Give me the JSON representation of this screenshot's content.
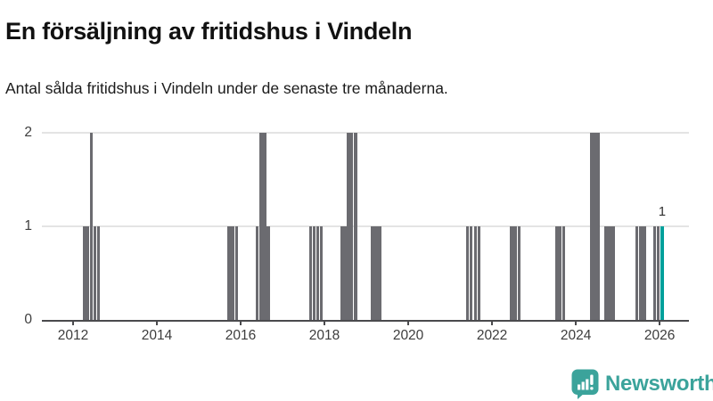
{
  "title": "En försäljning av fritidshus i Vindeln",
  "subtitle": "Antal sålda fritidshus i Vindeln under de senaste tre månaderna.",
  "branding": {
    "logo_text": "Newsworthy",
    "logo_icon": "newsworthy-bubble-barchart-icon",
    "logo_color": "#3BA39B"
  },
  "colors": {
    "bar": "#6B6B70",
    "highlight_bar": "#00A09B",
    "gridline": "#E4E4E4",
    "axis": "#4A4A4D",
    "tick_text": "#3D3D3D"
  },
  "chart_data": {
    "type": "bar",
    "title": "En försäljning av fritidshus i Vindeln",
    "subtitle": "Antal sålda fritidshus i Vindeln under de senaste tre månaderna.",
    "xlabel": "",
    "ylabel": "",
    "xlim": [
      2011.255,
      2026.7
    ],
    "ylim": [
      0,
      2
    ],
    "x_ticks": [
      2012,
      2014,
      2016,
      2018,
      2020,
      2022,
      2024,
      2026
    ],
    "y_ticks": [
      0,
      1,
      2
    ],
    "grid": "horizontal-light",
    "legend": "none",
    "annotation": {
      "text": "1",
      "year": 2026.06,
      "value": 1
    },
    "bars": [
      {
        "year": 2012.26,
        "value": 1
      },
      {
        "year": 2012.34,
        "value": 1
      },
      {
        "year": 2012.44,
        "value": 2
      },
      {
        "year": 2012.52,
        "value": 1
      },
      {
        "year": 2012.6,
        "value": 1
      },
      {
        "year": 2015.72,
        "value": 1
      },
      {
        "year": 2015.81,
        "value": 1
      },
      {
        "year": 2015.9,
        "value": 1
      },
      {
        "year": 2016.39,
        "value": 1
      },
      {
        "year": 2016.49,
        "value": 2
      },
      {
        "year": 2016.57,
        "value": 2
      },
      {
        "year": 2016.66,
        "value": 1
      },
      {
        "year": 2017.67,
        "value": 1
      },
      {
        "year": 2017.76,
        "value": 1
      },
      {
        "year": 2017.84,
        "value": 1
      },
      {
        "year": 2017.93,
        "value": 1
      },
      {
        "year": 2018.41,
        "value": 1
      },
      {
        "year": 2018.49,
        "value": 1
      },
      {
        "year": 2018.57,
        "value": 2
      },
      {
        "year": 2018.65,
        "value": 2
      },
      {
        "year": 2018.74,
        "value": 2
      },
      {
        "year": 2019.15,
        "value": 1
      },
      {
        "year": 2019.23,
        "value": 1
      },
      {
        "year": 2019.32,
        "value": 1
      },
      {
        "year": 2021.41,
        "value": 1
      },
      {
        "year": 2021.5,
        "value": 1
      },
      {
        "year": 2021.6,
        "value": 1
      },
      {
        "year": 2021.69,
        "value": 1
      },
      {
        "year": 2022.47,
        "value": 1
      },
      {
        "year": 2022.55,
        "value": 1
      },
      {
        "year": 2022.65,
        "value": 1
      },
      {
        "year": 2023.55,
        "value": 1
      },
      {
        "year": 2023.63,
        "value": 1
      },
      {
        "year": 2023.71,
        "value": 1
      },
      {
        "year": 2024.38,
        "value": 2
      },
      {
        "year": 2024.46,
        "value": 2
      },
      {
        "year": 2024.53,
        "value": 2
      },
      {
        "year": 2024.72,
        "value": 1
      },
      {
        "year": 2024.81,
        "value": 1
      },
      {
        "year": 2024.89,
        "value": 1
      },
      {
        "year": 2025.46,
        "value": 1
      },
      {
        "year": 2025.55,
        "value": 1
      },
      {
        "year": 2025.64,
        "value": 1
      },
      {
        "year": 2025.88,
        "value": 1
      },
      {
        "year": 2025.97,
        "value": 1
      },
      {
        "year": 2026.06,
        "value": 1,
        "highlight": true
      }
    ]
  }
}
